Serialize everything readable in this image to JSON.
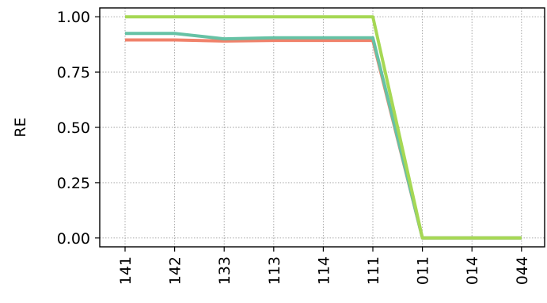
{
  "chart_data": {
    "type": "line",
    "title": "",
    "xlabel": "",
    "ylabel": "RE",
    "categories": [
      "141",
      "142",
      "133",
      "113",
      "114",
      "111",
      "011",
      "014",
      "044"
    ],
    "ylim": [
      -0.04,
      1.04
    ],
    "yticks": [
      0.0,
      0.25,
      0.5,
      0.75,
      1.0
    ],
    "ytick_labels": [
      "0.00",
      "0.25",
      "0.50",
      "0.75",
      "1.00"
    ],
    "grid": true,
    "series": [
      {
        "color": "#f0826b",
        "values": [
          0.895,
          0.895,
          0.89,
          0.893,
          0.893,
          0.893,
          0.0,
          0.0,
          0.0
        ]
      },
      {
        "color": "#66c2a5",
        "values": [
          0.925,
          0.925,
          0.9,
          0.905,
          0.905,
          0.905,
          0.0,
          0.0,
          0.0
        ]
      },
      {
        "color": "#a6d854",
        "values": [
          1.0,
          1.0,
          1.0,
          1.0,
          1.0,
          1.0,
          0.0,
          0.0,
          0.0
        ]
      }
    ]
  }
}
